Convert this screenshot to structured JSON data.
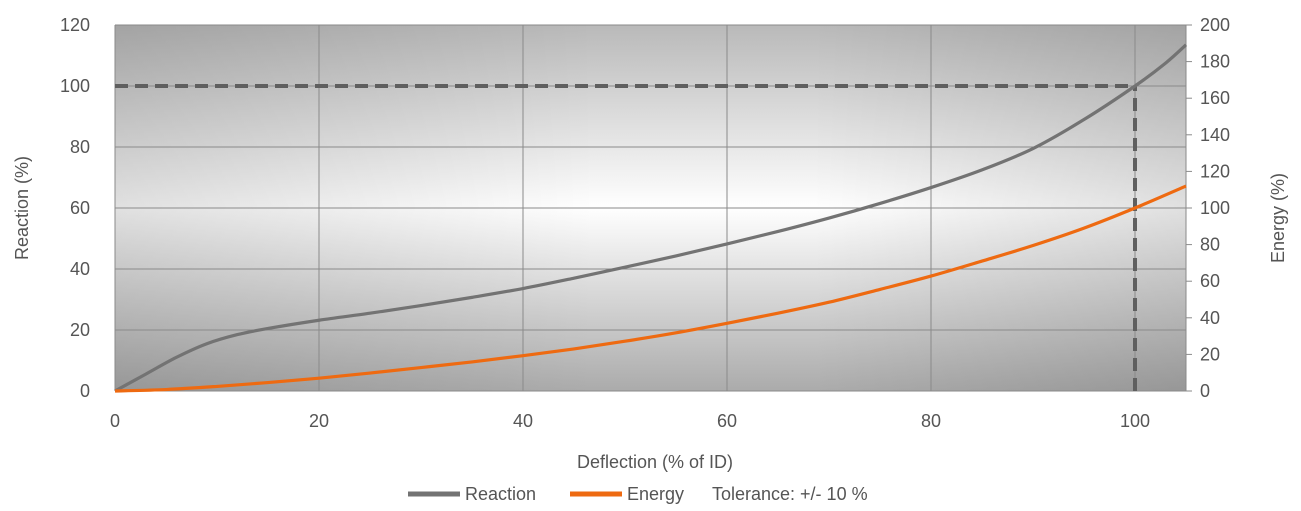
{
  "chart_data": {
    "type": "line",
    "xlabel": "Deflection (% of ID)",
    "ylabel": "Reaction (%)",
    "y2label": "Energy (%)",
    "xlim": [
      0,
      105
    ],
    "ylim": [
      0,
      120
    ],
    "y2lim": [
      0,
      200
    ],
    "xticks": [
      "0",
      "20",
      "40",
      "60",
      "80",
      "100"
    ],
    "yticks": [
      "0",
      "20",
      "40",
      "60",
      "80",
      "100",
      "120"
    ],
    "y2ticks": [
      "0",
      "20",
      "40",
      "60",
      "80",
      "100",
      "120",
      "140",
      "160",
      "180",
      "200"
    ],
    "grid": true,
    "legend_position": "bottom",
    "series": [
      {
        "name": "Reaction",
        "axis": "left",
        "color": "#737373",
        "x": [
          0,
          3,
          6,
          9,
          12,
          15,
          20,
          25,
          30,
          35,
          40,
          45,
          50,
          55,
          60,
          65,
          70,
          75,
          80,
          85,
          90,
          95,
          100,
          103,
          105
        ],
        "y": [
          0,
          5.5,
          11,
          15.5,
          18.5,
          20.5,
          23.2,
          25.5,
          28,
          30.7,
          33.6,
          37,
          40.6,
          44.3,
          48.2,
          52.3,
          56.7,
          61.5,
          66.7,
          72.5,
          79.5,
          89,
          100,
          107.5,
          113.5
        ]
      },
      {
        "name": "Energy",
        "axis": "right",
        "color": "#ee6a11",
        "x": [
          0,
          5,
          10,
          15,
          20,
          25,
          30,
          35,
          40,
          45,
          50,
          55,
          60,
          65,
          70,
          75,
          80,
          85,
          90,
          95,
          100,
          105
        ],
        "y": [
          0,
          0.8,
          2.5,
          4.6,
          7,
          9.8,
          12.8,
          15.9,
          19.3,
          23,
          27.2,
          31.8,
          37,
          42.5,
          48.5,
          55.5,
          62.8,
          71,
          79.5,
          89,
          100,
          112
        ]
      }
    ],
    "reference_lines": [
      {
        "axis": "left",
        "orientation": "horizontal",
        "value": 100,
        "x_from": 0,
        "x_to": 100,
        "style": "dashed",
        "color": "#5f5f5f"
      },
      {
        "axis": "x",
        "orientation": "vertical",
        "value": 100,
        "y_from": 0,
        "y_to": 100,
        "style": "dashed",
        "color": "#5f5f5f"
      }
    ],
    "legend_note": "Tolerance: +/- 10 %"
  }
}
